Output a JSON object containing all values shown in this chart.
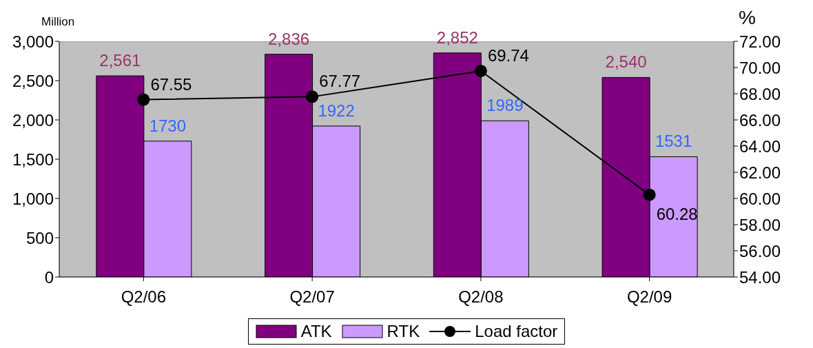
{
  "chart_data": {
    "type": "bar",
    "ylabel": "Million",
    "y2label": "%",
    "categories": [
      "Q2/06",
      "Q2/07",
      "Q2/08",
      "Q2/09"
    ],
    "series": [
      {
        "name": "ATK",
        "color": "#800080",
        "values": [
          2561,
          2836,
          2852,
          2540
        ],
        "value_labels": [
          "2,561",
          "2,836",
          "2,852",
          "2,540"
        ]
      },
      {
        "name": "RTK",
        "color": "#cc99ff",
        "values": [
          1730,
          1922,
          1989,
          1531
        ],
        "value_labels": [
          "1730",
          "1922",
          "1989",
          "1531"
        ]
      },
      {
        "name": "Load factor",
        "type": "line",
        "axis": "y2",
        "color": "#000000",
        "marker": "circle",
        "values": [
          67.55,
          67.77,
          69.74,
          60.28
        ],
        "value_labels": [
          "67.55",
          "67.77",
          "69.74",
          "60.28"
        ]
      }
    ],
    "ylim": [
      0,
      3000
    ],
    "yticks": [
      0,
      {
        "value": 500,
        "label": "500"
      },
      {
        "value": 1000,
        "label": "1,000"
      },
      {
        "value": 1500,
        "label": "1,500"
      },
      {
        "value": 2000,
        "label": "2,000"
      },
      {
        "value": 2500,
        "label": "2,500"
      },
      {
        "value": 3000,
        "label": "3,000"
      }
    ],
    "y2lim": [
      54,
      72
    ],
    "y2ticks": [
      {
        "value": 54,
        "label": "54.00"
      },
      {
        "value": 56,
        "label": "56.00"
      },
      {
        "value": 58,
        "label": "58.00"
      },
      {
        "value": 60,
        "label": "60.00"
      },
      {
        "value": 62,
        "label": "62.00"
      },
      {
        "value": 64,
        "label": "64.00"
      },
      {
        "value": 66,
        "label": "66.00"
      },
      {
        "value": 68,
        "label": "68.00"
      },
      {
        "value": 70,
        "label": "70.00"
      },
      {
        "value": 72,
        "label": "72.00"
      }
    ],
    "grid": false,
    "legend": "bottom"
  }
}
